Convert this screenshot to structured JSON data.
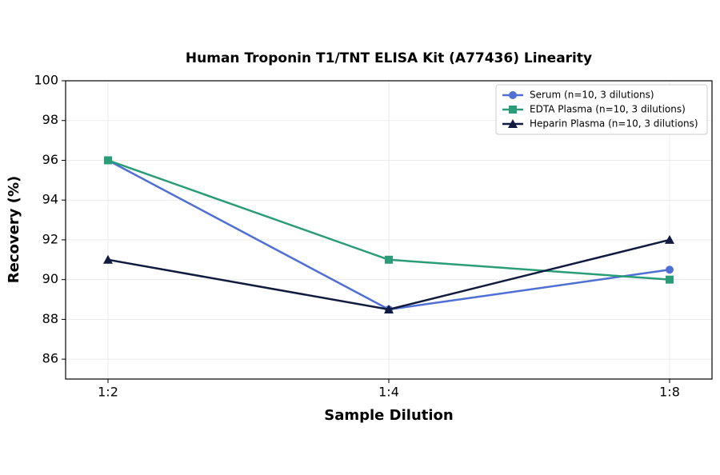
{
  "chart_data": {
    "type": "line",
    "title": "Human Troponin T1/TNT ELISA Kit (A77436) Linearity",
    "x_label": "Sample Dilution",
    "y_label": "Recovery (%)",
    "categories": [
      "1:2",
      "1:4",
      "1:8"
    ],
    "series": [
      {
        "name": "Serum (n=10, 3 dilutions)",
        "color": "#4f6fd4",
        "marker": "circle",
        "values": [
          96,
          88.5,
          90.5
        ]
      },
      {
        "name": "EDTA Plasma (n=10, 3 dilutions)",
        "color": "#2a9d78",
        "marker": "square",
        "values": [
          96,
          91,
          90
        ]
      },
      {
        "name": "Heparin Plasma (n=10, 3 dilutions)",
        "color": "#111a3f",
        "marker": "triangle",
        "values": [
          91,
          88.5,
          92
        ]
      }
    ],
    "ylim": [
      85,
      100
    ],
    "yticks": [
      86,
      88,
      90,
      92,
      94,
      96,
      98,
      100
    ],
    "grid": true,
    "legend": "upper right"
  }
}
